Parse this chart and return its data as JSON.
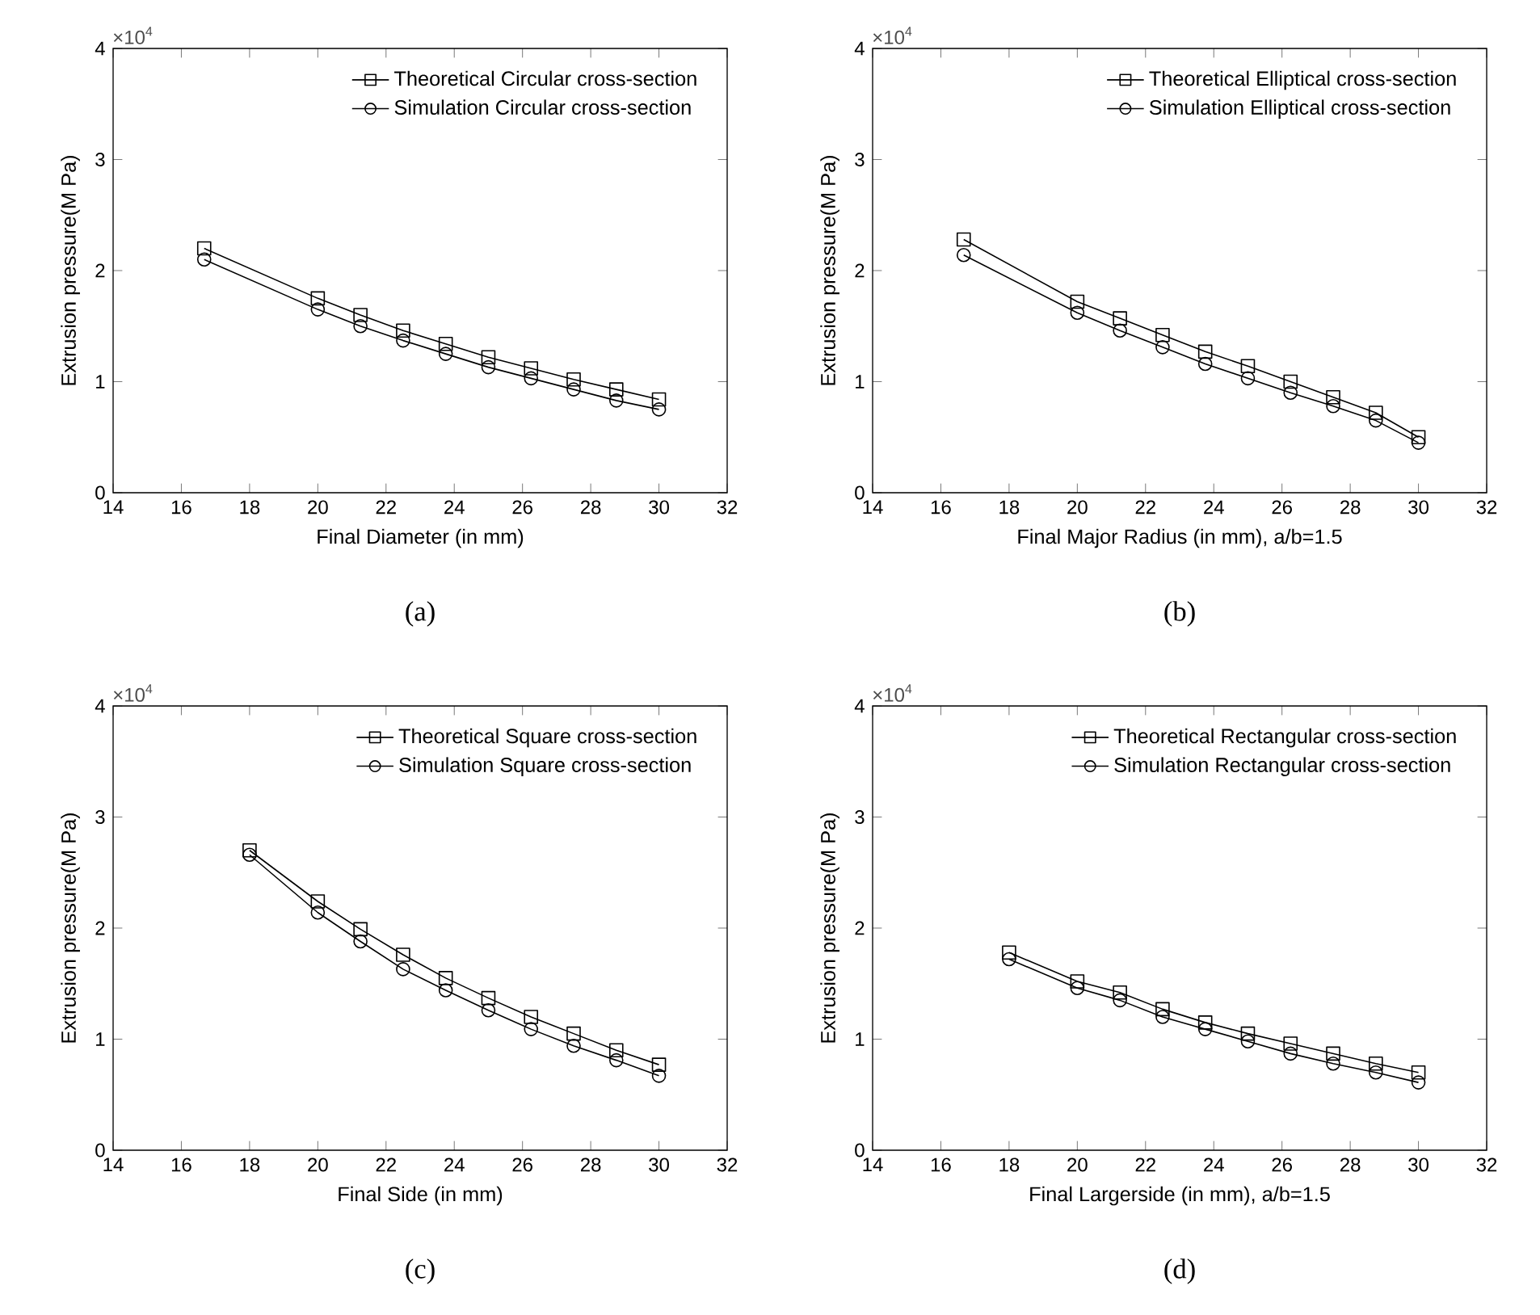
{
  "chart_data": [
    {
      "type": "line",
      "xlabel": "Final Diameter (in mm)",
      "ylabel": "Extrusion pressure(M Pa)",
      "annotations": [
        "×10$^{4}$",
        "(a)"
      ],
      "xlim": [
        14,
        32
      ],
      "xticks": [
        14,
        16,
        18,
        20,
        22,
        24,
        26,
        28,
        30,
        32
      ],
      "ylim": [
        0,
        4
      ],
      "yticks": [
        0,
        1,
        2,
        3,
        4
      ],
      "legend": "top right",
      "grid": false,
      "x": [
        16.67,
        20,
        21.25,
        22.5,
        23.75,
        25,
        26.25,
        27.5,
        28.75,
        30
      ],
      "series": [
        {
          "name": "Theoretical Circular cross-section",
          "color": "#000000",
          "marker": "square",
          "values": [
            2.2,
            1.75,
            1.6,
            1.46,
            1.34,
            1.22,
            1.12,
            1.02,
            0.93,
            0.84
          ]
        },
        {
          "name": "Simulation Circular cross-section",
          "color": "#000000",
          "marker": "circle",
          "values": [
            2.1,
            1.65,
            1.5,
            1.37,
            1.25,
            1.13,
            1.03,
            0.93,
            0.83,
            0.75
          ]
        }
      ]
    },
    {
      "type": "line",
      "xlabel": "Final Major Radius (in mm), a/b=1.5",
      "ylabel": "Extrusion pressure(M Pa)",
      "annotations": [
        "×10$^{4}$",
        "(b)"
      ],
      "xlim": [
        14,
        32
      ],
      "xticks": [
        14,
        16,
        18,
        20,
        22,
        24,
        26,
        28,
        30,
        32
      ],
      "ylim": [
        0,
        4
      ],
      "yticks": [
        0,
        1,
        2,
        3,
        4
      ],
      "legend": "top right",
      "grid": false,
      "x": [
        16.67,
        20,
        21.25,
        22.5,
        23.75,
        25,
        26.25,
        27.5,
        28.75,
        30
      ],
      "series": [
        {
          "name": "Theoretical Elliptical cross-section",
          "color": "#000000",
          "marker": "square",
          "values": [
            2.28,
            1.72,
            1.57,
            1.42,
            1.27,
            1.14,
            1.0,
            0.86,
            0.72,
            0.5
          ]
        },
        {
          "name": "Simulation Elliptical cross-section",
          "color": "#000000",
          "marker": "circle",
          "values": [
            2.14,
            1.62,
            1.46,
            1.31,
            1.16,
            1.03,
            0.9,
            0.78,
            0.65,
            0.45
          ]
        }
      ]
    },
    {
      "type": "line",
      "xlabel": "Final Side (in mm)",
      "ylabel": "Extrusion pressure(M Pa)",
      "annotations": [
        "×10$^{4}$",
        "(c)"
      ],
      "xlim": [
        14,
        32
      ],
      "xticks": [
        14,
        16,
        18,
        20,
        22,
        24,
        26,
        28,
        30,
        32
      ],
      "ylim": [
        0,
        4
      ],
      "yticks": [
        0,
        1,
        2,
        3,
        4
      ],
      "legend": "top right",
      "grid": false,
      "x": [
        18,
        20,
        21.25,
        22.5,
        23.75,
        25,
        26.25,
        27.5,
        28.75,
        30
      ],
      "series": [
        {
          "name": "Theoretical Square cross-section",
          "color": "#000000",
          "marker": "square",
          "values": [
            2.7,
            2.24,
            1.99,
            1.76,
            1.55,
            1.37,
            1.2,
            1.05,
            0.9,
            0.77
          ]
        },
        {
          "name": "Simulation Square cross-section",
          "color": "#000000",
          "marker": "circle",
          "values": [
            2.66,
            2.14,
            1.88,
            1.63,
            1.44,
            1.26,
            1.09,
            0.94,
            0.81,
            0.67
          ]
        }
      ]
    },
    {
      "type": "line",
      "xlabel": "Final Largerside (in mm), a/b=1.5",
      "ylabel": "Extrusion pressure(M Pa)",
      "annotations": [
        "×10$^{4}$",
        "(d)"
      ],
      "xlim": [
        14,
        32
      ],
      "xticks": [
        14,
        16,
        18,
        20,
        22,
        24,
        26,
        28,
        30,
        32
      ],
      "ylim": [
        0,
        4
      ],
      "yticks": [
        0,
        1,
        2,
        3,
        4
      ],
      "legend": "top right",
      "grid": false,
      "x": [
        18,
        20,
        21.25,
        22.5,
        23.75,
        25,
        26.25,
        27.5,
        28.75,
        30
      ],
      "series": [
        {
          "name": "Theoretical Rectangular cross-section",
          "color": "#000000",
          "marker": "square",
          "values": [
            1.78,
            1.52,
            1.42,
            1.27,
            1.15,
            1.05,
            0.96,
            0.87,
            0.78,
            0.7
          ]
        },
        {
          "name": "Simulation Rectangular cross-section",
          "color": "#000000",
          "marker": "circle",
          "values": [
            1.72,
            1.46,
            1.35,
            1.2,
            1.09,
            0.98,
            0.87,
            0.78,
            0.7,
            0.61
          ]
        }
      ]
    }
  ]
}
